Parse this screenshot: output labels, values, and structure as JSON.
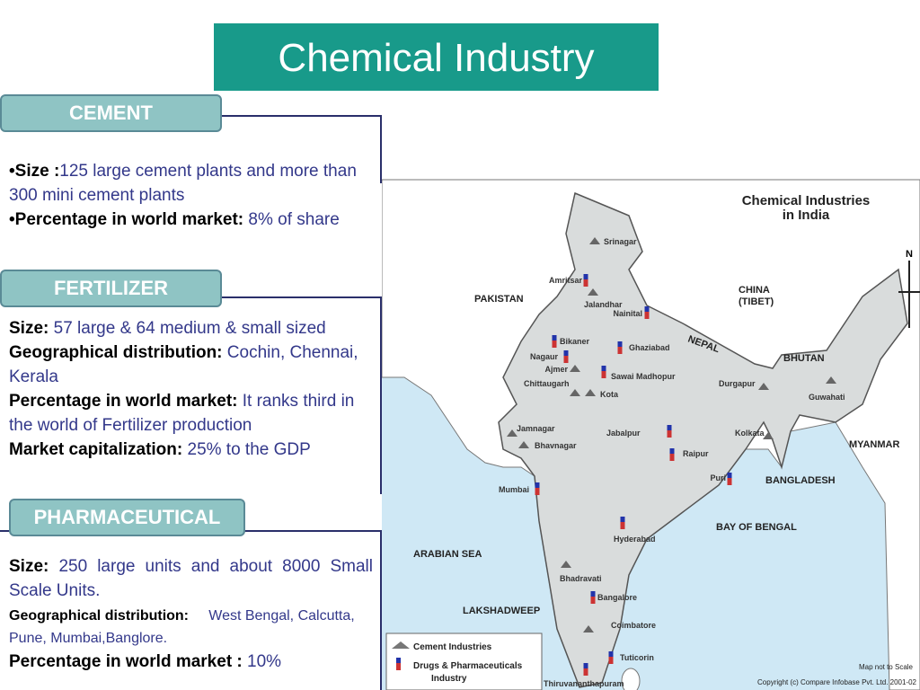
{
  "title": "Chemical Industry",
  "sections": [
    {
      "tab": "CEMENT",
      "items": [
        {
          "label": "•Size :",
          "text": "125 large cement plants  and more than 300 mini cement plants"
        },
        {
          "label": "•Percentage in world market:",
          "text": "8% of share"
        }
      ]
    },
    {
      "tab": "FERTILIZER",
      "items": [
        {
          "label": "Size:",
          "text": "57 large & 64 medium & small sized"
        },
        {
          "label": "Geographical distribution:",
          "text": "Cochin, Chennai, Kerala"
        },
        {
          "label": "Percentage in world market:",
          "text": "It ranks third in the world of Fertilizer production"
        },
        {
          "label": "Market capitalization:",
          "text": "25% to the GDP"
        }
      ]
    },
    {
      "tab": "PHARMACEUTICAL",
      "items": [
        {
          "label": "Size:",
          "text": "250 large units and about 8000 Small Scale Units."
        },
        {
          "label": "Geographical distribution:",
          "text": "West Bengal, Calcutta, Pune, Mumbai,Banglore."
        },
        {
          "label": "Percentage in world market :",
          "text": "10%"
        }
      ]
    }
  ],
  "map": {
    "title": [
      "Chemical Industries",
      "in India"
    ],
    "regions": [
      "PAKISTAN",
      "CHINA",
      "(TIBET)",
      "NEPAL",
      "BHUTAN",
      "MYANMAR",
      "BANGLADESH",
      "BAY OF BENGAL",
      "ARABIAN SEA",
      "LAKSHADWEEP"
    ],
    "cement_sites": [
      "Srinagar",
      "Jalandhar",
      "Ajmer",
      "Chittaugarh",
      "Kota",
      "Durgapur",
      "Guwahati",
      "Jamnagar",
      "Bhavnagar",
      "Kolkata",
      "Bhadravati",
      "Coimbatore"
    ],
    "drug_sites": [
      "Amritsar",
      "Nainital",
      "Bikaner",
      "Ghaziabad",
      "Nagaur",
      "Sawai Madhopur",
      "Jabalpur",
      "Raipur",
      "Puri",
      "Mumbai",
      "Hyderabad",
      "Bangalore",
      "Tuticorin",
      "Thiruvananthapuram"
    ],
    "north": "N",
    "legend": [
      "Cement Industries",
      "Drugs & Pharmaceuticals",
      "Industry"
    ],
    "scale_note": "Map not to Scale",
    "copyright": "Copyright (c) Compare Infobase Pvt. Ltd. 2001-02"
  }
}
